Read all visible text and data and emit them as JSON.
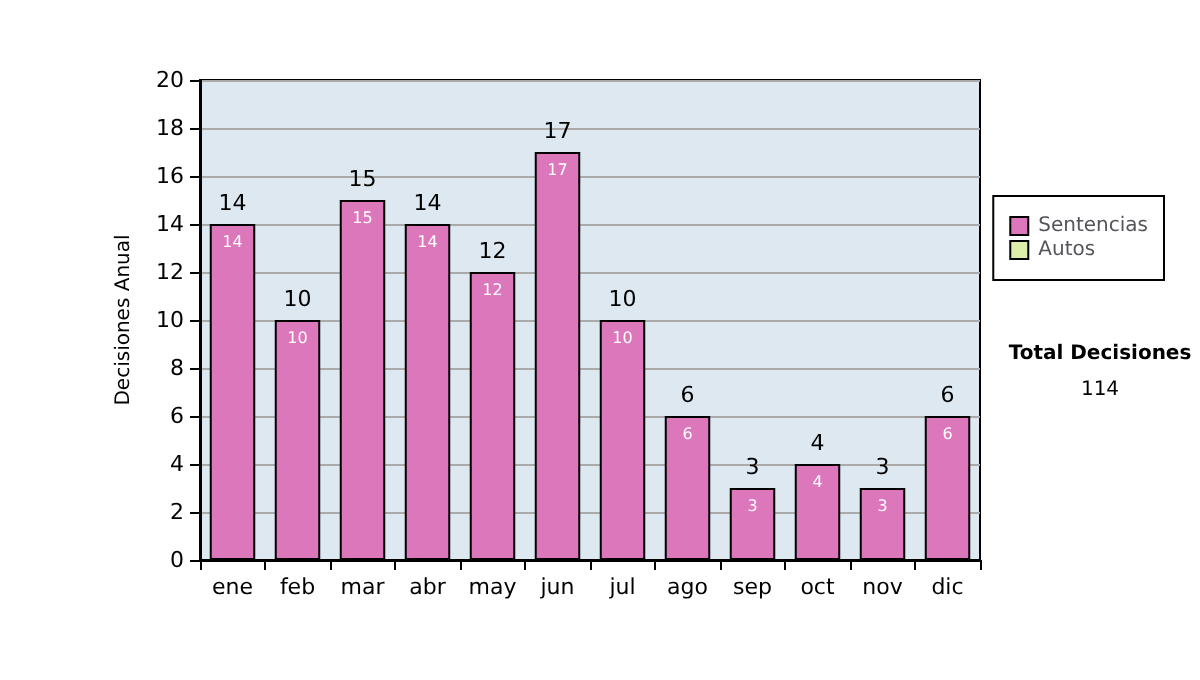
{
  "chart_data": {
    "type": "bar",
    "ylabel": "Decisiones Anual",
    "categories": [
      "ene",
      "feb",
      "mar",
      "abr",
      "may",
      "jun",
      "jul",
      "ago",
      "sep",
      "oct",
      "nov",
      "dic"
    ],
    "series": [
      {
        "name": "Sentencias",
        "color": "#dd77bb",
        "values": [
          14,
          10,
          15,
          14,
          12,
          17,
          10,
          6,
          3,
          4,
          3,
          6
        ],
        "value_labels": [
          "14",
          "10",
          "15",
          "14",
          "12",
          "17",
          "10",
          "6",
          "3",
          "4",
          "3",
          "6"
        ]
      },
      {
        "name": "Autos",
        "color": "#ddeeaa",
        "values": [
          0,
          0,
          0,
          0,
          0,
          0,
          0,
          0,
          0,
          0,
          0,
          0
        ]
      }
    ],
    "stacked": true,
    "totals": [
      "14",
      "10",
      "15",
      "14",
      "12",
      "17",
      "10",
      "6",
      "3",
      "4",
      "3",
      "6"
    ],
    "ylim": [
      0,
      20
    ],
    "yticks": [
      0,
      2,
      4,
      6,
      8,
      10,
      12,
      14,
      16,
      18,
      20
    ],
    "grid": "y",
    "legend": "right",
    "annotations": [
      "Total Decisiones",
      "114"
    ]
  }
}
